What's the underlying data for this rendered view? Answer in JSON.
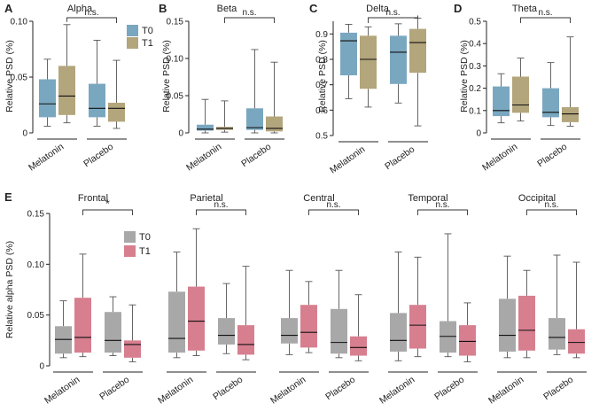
{
  "figure": {
    "colors": {
      "t0": "#7aa7c0",
      "t1": "#b3a57c",
      "gray": "#a8a8a8",
      "pink": "#d77f8f",
      "ink": "#222222"
    },
    "significance_ns": "n.s.",
    "significance_star": "*"
  },
  "chart_data": [
    {
      "id": "alpha",
      "panel_label": "A",
      "type": "box",
      "title": "Alpha",
      "ylabel": "Relative PSD (%)",
      "ylim": [
        0,
        0.1
      ],
      "ticks": [
        0,
        0.05,
        0.1
      ],
      "tick_labels": [
        "0",
        "0.05",
        "0.10"
      ],
      "groups": [
        "Melatonin",
        "Placebo"
      ],
      "legend": [
        "T0",
        "T1"
      ],
      "significance": "n.s.",
      "sig_between": "Melatonin-T1 vs Placebo-T1",
      "boxes": [
        {
          "group": "Melatonin",
          "series": "T0",
          "min": 0.006,
          "q1": 0.014,
          "median": 0.026,
          "q3": 0.048,
          "max": 0.066
        },
        {
          "group": "Melatonin",
          "series": "T1",
          "min": 0.009,
          "q1": 0.016,
          "median": 0.033,
          "q3": 0.06,
          "max": 0.097
        },
        {
          "group": "Placebo",
          "series": "T0",
          "min": 0.006,
          "q1": 0.014,
          "median": 0.022,
          "q3": 0.044,
          "max": 0.083
        },
        {
          "group": "Placebo",
          "series": "T1",
          "min": 0.004,
          "q1": 0.01,
          "median": 0.022,
          "q3": 0.027,
          "max": 0.065
        }
      ]
    },
    {
      "id": "beta",
      "panel_label": "B",
      "type": "box",
      "title": "Beta",
      "ylabel": "Relative PSD (%)",
      "ylim": [
        0,
        0.15
      ],
      "ticks": [
        0,
        0.05,
        0.1,
        0.15
      ],
      "tick_labels": [
        "0",
        "0.05",
        "0.10",
        "0.15"
      ],
      "groups": [
        "Melatonin",
        "Placebo"
      ],
      "legend": [],
      "significance": "n.s.",
      "sig_between": "Melatonin-T1 vs Placebo-T1",
      "boxes": [
        {
          "group": "Melatonin",
          "series": "T0",
          "min": 0.0,
          "q1": 0.003,
          "median": 0.005,
          "q3": 0.011,
          "max": 0.045
        },
        {
          "group": "Melatonin",
          "series": "T1",
          "min": 0.001,
          "q1": 0.004,
          "median": 0.006,
          "q3": 0.008,
          "max": 0.043
        },
        {
          "group": "Placebo",
          "series": "T0",
          "min": 0.0,
          "q1": 0.004,
          "median": 0.007,
          "q3": 0.033,
          "max": 0.112
        },
        {
          "group": "Placebo",
          "series": "T1",
          "min": 0.0,
          "q1": 0.002,
          "median": 0.006,
          "q3": 0.022,
          "max": 0.095
        }
      ]
    },
    {
      "id": "delta",
      "panel_label": "C",
      "type": "box",
      "title": "Delta",
      "ylabel": "Relative PSD (%)",
      "ylim": [
        0.5,
        0.95
      ],
      "ticks": [
        0.5,
        0.6,
        0.7,
        0.8,
        0.9
      ],
      "tick_labels": [
        "0.5",
        "0.6",
        "0.7",
        "0.8",
        "0.9"
      ],
      "groups": [
        "Melatonin",
        "Placebo"
      ],
      "legend": [],
      "significance": "n.s.",
      "sig_between": "Melatonin-T1 vs Placebo-T1",
      "boxes": [
        {
          "group": "Melatonin",
          "series": "T0",
          "min": 0.645,
          "q1": 0.737,
          "median": 0.873,
          "q3": 0.905,
          "max": 0.938
        },
        {
          "group": "Melatonin",
          "series": "T1",
          "min": 0.612,
          "q1": 0.684,
          "median": 0.8,
          "q3": 0.893,
          "max": 0.928
        },
        {
          "group": "Placebo",
          "series": "T0",
          "min": 0.628,
          "q1": 0.703,
          "median": 0.828,
          "q3": 0.893,
          "max": 0.94
        },
        {
          "group": "Placebo",
          "series": "T1",
          "min": 0.538,
          "q1": 0.747,
          "median": 0.866,
          "q3": 0.92,
          "max": 0.962
        }
      ]
    },
    {
      "id": "theta",
      "panel_label": "D",
      "type": "box",
      "title": "Theta",
      "ylabel": "Relative PSD (%)",
      "ylim": [
        0,
        0.5
      ],
      "ticks": [
        0,
        0.1,
        0.2,
        0.3,
        0.4,
        0.5
      ],
      "tick_labels": [
        "0",
        "0.1",
        "0.2",
        "0.3",
        "0.4",
        "0.5"
      ],
      "groups": [
        "Melatonin",
        "Placebo"
      ],
      "legend": [],
      "significance": "n.s.",
      "sig_between": "Melatonin-T1 vs Placebo-T1",
      "boxes": [
        {
          "group": "Melatonin",
          "series": "T0",
          "min": 0.045,
          "q1": 0.075,
          "median": 0.1,
          "q3": 0.208,
          "max": 0.265
        },
        {
          "group": "Melatonin",
          "series": "T1",
          "min": 0.053,
          "q1": 0.09,
          "median": 0.125,
          "q3": 0.252,
          "max": 0.335
        },
        {
          "group": "Placebo",
          "series": "T0",
          "min": 0.033,
          "q1": 0.07,
          "median": 0.092,
          "q3": 0.2,
          "max": 0.315
        },
        {
          "group": "Placebo",
          "series": "T1",
          "min": 0.03,
          "q1": 0.048,
          "median": 0.085,
          "q3": 0.115,
          "max": 0.43
        }
      ]
    },
    {
      "id": "frontal",
      "panel_label": "E",
      "type": "box",
      "title": "Frontal",
      "ylabel": "Relative alpha PSD (%)",
      "ylim": [
        0,
        0.15
      ],
      "ticks": [
        0,
        0.05,
        0.1,
        0.15
      ],
      "tick_labels": [
        "0",
        "0.05",
        "0.10",
        "0.15"
      ],
      "groups": [
        "Melatonin",
        "Placebo"
      ],
      "legend": [
        "T0",
        "T1"
      ],
      "significance": "*",
      "sig_between": "Melatonin-T1 vs Placebo-T1",
      "boxes": [
        {
          "group": "Melatonin",
          "series": "T0",
          "min": 0.008,
          "q1": 0.012,
          "median": 0.026,
          "q3": 0.039,
          "max": 0.064
        },
        {
          "group": "Melatonin",
          "series": "T1",
          "min": 0.009,
          "q1": 0.013,
          "median": 0.028,
          "q3": 0.067,
          "max": 0.11
        },
        {
          "group": "Placebo",
          "series": "T0",
          "min": 0.01,
          "q1": 0.013,
          "median": 0.025,
          "q3": 0.053,
          "max": 0.068
        },
        {
          "group": "Placebo",
          "series": "T1",
          "min": 0.004,
          "q1": 0.008,
          "median": 0.021,
          "q3": 0.025,
          "max": 0.06
        }
      ]
    },
    {
      "id": "parietal",
      "type": "box",
      "title": "Parietal",
      "ylim": [
        0,
        0.15
      ],
      "groups": [
        "Melatonin",
        "Placebo"
      ],
      "significance": "n.s.",
      "sig_between": "Melatonin-T1 vs Placebo-T1",
      "boxes": [
        {
          "group": "Melatonin",
          "series": "T0",
          "min": 0.008,
          "q1": 0.013,
          "median": 0.027,
          "q3": 0.073,
          "max": 0.112
        },
        {
          "group": "Melatonin",
          "series": "T1",
          "min": 0.01,
          "q1": 0.015,
          "median": 0.044,
          "q3": 0.078,
          "max": 0.135
        },
        {
          "group": "Placebo",
          "series": "T0",
          "min": 0.012,
          "q1": 0.021,
          "median": 0.03,
          "q3": 0.047,
          "max": 0.081
        },
        {
          "group": "Placebo",
          "series": "T1",
          "min": 0.006,
          "q1": 0.011,
          "median": 0.021,
          "q3": 0.04,
          "max": 0.098
        }
      ]
    },
    {
      "id": "central",
      "type": "box",
      "title": "Central",
      "ylim": [
        0,
        0.15
      ],
      "groups": [
        "Melatonin",
        "Placebo"
      ],
      "significance": "n.s.",
      "sig_between": "Melatonin-T1 vs Placebo-T1",
      "boxes": [
        {
          "group": "Melatonin",
          "series": "T0",
          "min": 0.011,
          "q1": 0.022,
          "median": 0.03,
          "q3": 0.047,
          "max": 0.094
        },
        {
          "group": "Melatonin",
          "series": "T1",
          "min": 0.013,
          "q1": 0.018,
          "median": 0.033,
          "q3": 0.06,
          "max": 0.083
        },
        {
          "group": "Placebo",
          "series": "T0",
          "min": 0.008,
          "q1": 0.012,
          "median": 0.023,
          "q3": 0.056,
          "max": 0.094
        },
        {
          "group": "Placebo",
          "series": "T1",
          "min": 0.005,
          "q1": 0.01,
          "median": 0.018,
          "q3": 0.029,
          "max": 0.07
        }
      ]
    },
    {
      "id": "temporal",
      "type": "box",
      "title": "Temporal",
      "ylim": [
        0,
        0.15
      ],
      "groups": [
        "Melatonin",
        "Placebo"
      ],
      "significance": "n.s.",
      "sig_between": "Melatonin-T1 vs Placebo-T1",
      "boxes": [
        {
          "group": "Melatonin",
          "series": "T0",
          "min": 0.005,
          "q1": 0.014,
          "median": 0.025,
          "q3": 0.052,
          "max": 0.112
        },
        {
          "group": "Melatonin",
          "series": "T1",
          "min": 0.009,
          "q1": 0.017,
          "median": 0.04,
          "q3": 0.06,
          "max": 0.107
        },
        {
          "group": "Placebo",
          "series": "T0",
          "min": 0.009,
          "q1": 0.013,
          "median": 0.029,
          "q3": 0.044,
          "max": 0.13
        },
        {
          "group": "Placebo",
          "series": "T1",
          "min": 0.004,
          "q1": 0.01,
          "median": 0.024,
          "q3": 0.04,
          "max": 0.062
        }
      ]
    },
    {
      "id": "occipital",
      "type": "box",
      "title": "Occipital",
      "ylim": [
        0,
        0.15
      ],
      "groups": [
        "Melatonin",
        "Placebo"
      ],
      "significance": "n.s.",
      "sig_between": "Melatonin-T1 vs Placebo-T1",
      "boxes": [
        {
          "group": "Melatonin",
          "series": "T0",
          "min": 0.008,
          "q1": 0.014,
          "median": 0.03,
          "q3": 0.066,
          "max": 0.108
        },
        {
          "group": "Melatonin",
          "series": "T1",
          "min": 0.008,
          "q1": 0.015,
          "median": 0.035,
          "q3": 0.069,
          "max": 0.094
        },
        {
          "group": "Placebo",
          "series": "T0",
          "min": 0.011,
          "q1": 0.016,
          "median": 0.028,
          "q3": 0.047,
          "max": 0.109
        },
        {
          "group": "Placebo",
          "series": "T1",
          "min": 0.008,
          "q1": 0.012,
          "median": 0.023,
          "q3": 0.036,
          "max": 0.102
        }
      ]
    }
  ]
}
